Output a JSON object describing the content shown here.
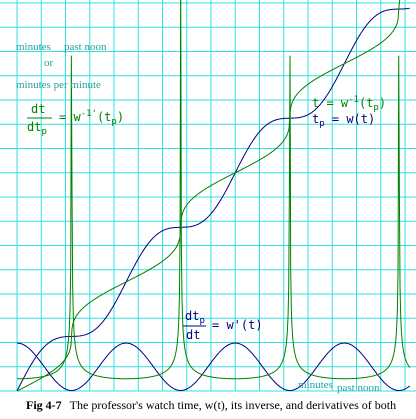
{
  "figure": {
    "caption_bold": "Fig 4-7",
    "caption_text": "The professor's watch time, w(t), its inverse, and derivatives of both",
    "caption_italic_part": "w(t)"
  },
  "chart_data": {
    "type": "line",
    "title": "",
    "y_axis_label_line1_a": "minutes",
    "y_axis_label_line1_b": "past noon",
    "y_axis_label_line2": "or",
    "y_axis_label_line3": "minutes per minute",
    "x_axis_label_a": "minutes",
    "x_axis_label_b": "past noon",
    "grid": true,
    "grid_color": "#33e0e0",
    "xlim": [
      0,
      16
    ],
    "ylim": [
      0,
      16
    ],
    "annotations": {
      "green_derivative": {
        "lhs_num": "dt",
        "lhs_den_base": "dt",
        "lhs_den_sub": "p",
        "rhs": "= w",
        "rhs_sup": "-1'",
        "rhs_tail": "(t",
        "rhs_sub": "p",
        "rhs_end": ")"
      },
      "green_inverse": {
        "lhs": "t = w",
        "lhs_sup": "-1",
        "lhs_tail": "(t",
        "lhs_sub": "p",
        "lhs_end": ")"
      },
      "blue_watch": {
        "lhs_base": "t",
        "lhs_sub": "p",
        "rhs": " = w(t)"
      },
      "blue_derivative": {
        "num_base": "dt",
        "num_sub": "p",
        "den": "dt",
        "rhs": "= w'(t)"
      }
    },
    "series": [
      {
        "color": "#000080",
        "formula": "w(t) = t + 0.7 sin(2πt/4.5)",
        "samples": 400
      },
      {
        "color": "#008000",
        "formula": "inverse of w",
        "samples": 400
      },
      {
        "color": "#000080",
        "formula": "w'(t) = 1 + 0.977 cos(2πt/4.5)",
        "samples": 400
      },
      {
        "color": "#008000",
        "formula": "1 / w'(inverse(t))",
        "samples": 600
      }
    ]
  }
}
